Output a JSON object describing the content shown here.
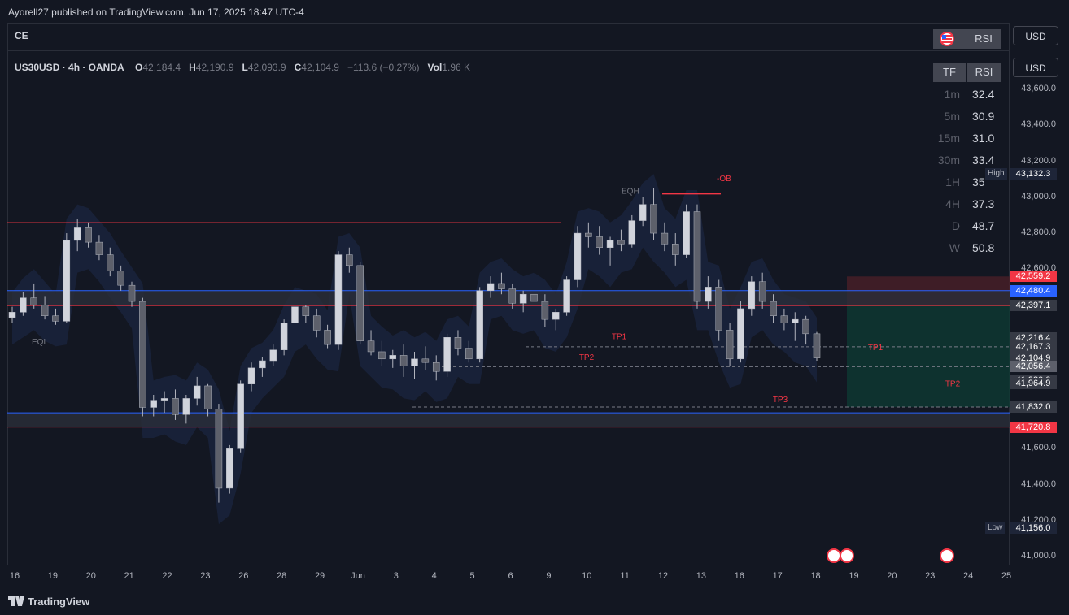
{
  "header": {
    "publisher_line": "Ayorell27 published on TradingView.com, Jun 17, 2025 18:47 UTC-4"
  },
  "mini_pane": {
    "label": "CE",
    "buttons": [
      "RSI"
    ]
  },
  "legend": {
    "symbol": "US30USD · 4h · OANDA",
    "o_label": "O",
    "o_value": "42,184.4",
    "h_label": "H",
    "h_value": "42,190.9",
    "l_label": "L",
    "l_value": "42,093.9",
    "c_label": "C",
    "c_value": "42,104.9",
    "change": "−113.6 (−0.27%)",
    "vol_label": "Vol",
    "vol_value": "1.96 K"
  },
  "rsi_table": {
    "header_tf": "TF",
    "header_rsi": "RSI",
    "rows": [
      {
        "tf": "1m",
        "rsi": "32.4"
      },
      {
        "tf": "5m",
        "rsi": "30.9"
      },
      {
        "tf": "15m",
        "rsi": "31.0"
      },
      {
        "tf": "30m",
        "rsi": "33.4"
      },
      {
        "tf": "1H",
        "rsi": "35"
      },
      {
        "tf": "4H",
        "rsi": "37.3"
      },
      {
        "tf": "D",
        "rsi": "48.7"
      },
      {
        "tf": "W",
        "rsi": "50.8"
      }
    ]
  },
  "currency": "USD",
  "branding": "TradingView",
  "colors": {
    "bg": "#131722",
    "candle": "#b2b5be",
    "red_line": "#f23645",
    "blue_line": "#2962ff",
    "cloud_blue": "#1e2a4a",
    "cloud_red": "#3d1f2a",
    "tp_box": "#0e3a33",
    "sl_box": "#4a1f28"
  },
  "chart_data": {
    "type": "candlestick",
    "symbol": "US30USD",
    "interval": "4h",
    "ylim": [
      40950,
      43800
    ],
    "y_ticks": [
      41000,
      41200,
      41400,
      41600,
      42600,
      42800,
      43000,
      43200,
      43400,
      43600
    ],
    "y_tick_labels": [
      "41,000.0",
      "41,200.0",
      "41,400.0",
      "41,600.0",
      "42,600.0",
      "42,800.0",
      "43,000.0",
      "43,200.0",
      "43,400.0",
      "43,600.0"
    ],
    "x_tick_labels": [
      "16",
      "19",
      "20",
      "21",
      "22",
      "23",
      "26",
      "28",
      "29",
      "Jun",
      "3",
      "4",
      "5",
      "6",
      "9",
      "10",
      "11",
      "12",
      "13",
      "16",
      "17",
      "18",
      "19",
      "20",
      "23",
      "24",
      "25"
    ],
    "price_labels": [
      {
        "value": 43132.3,
        "text": "43,132.3",
        "color": "#1e2538",
        "tag": "High"
      },
      {
        "value": 42559.2,
        "text": "42,559.2",
        "color": "#f23645"
      },
      {
        "value": 42480.4,
        "text": "42,480.4",
        "color": "#2962ff"
      },
      {
        "value": 42397.1,
        "text": "42,397.1",
        "color": "#363a45"
      },
      {
        "value": 42216.4,
        "text": "42,216.4",
        "color": "#363a45"
      },
      {
        "value": 42167.3,
        "text": "42,167.3",
        "color": "#363a45"
      },
      {
        "value": 42104.9,
        "text": "42,104.9",
        "color": "#363a45"
      },
      {
        "value": 42056.4,
        "text": "42,056.4",
        "color": "#5d606b"
      },
      {
        "value": 41980.0,
        "text": "41,980.0",
        "color": "#363a45"
      },
      {
        "value": 41964.9,
        "text": "41,964.9",
        "color": "#363a45"
      },
      {
        "value": 41832.0,
        "text": "41,832.0",
        "color": "#363a45"
      },
      {
        "value": 41720.8,
        "text": "41,720.8",
        "color": "#f23645"
      },
      {
        "value": 41156.0,
        "text": "41,156.0",
        "color": "#1e2538",
        "tag": "Low"
      }
    ],
    "annotations": [
      "EQL",
      "EQH",
      "-OB",
      "TP1",
      "TP2",
      "TP3"
    ],
    "levels": {
      "red_upper": 42397.1,
      "blue_upper": 42480.4,
      "blue_lower": 41800,
      "red_lower": 41720.8,
      "tp1": 42167.3,
      "tp2": 42056.4,
      "tp3": 41832.0,
      "ob": 43020
    },
    "candles": [
      [
        42330,
        42390,
        42300,
        42360
      ],
      [
        42360,
        42470,
        42340,
        42440
      ],
      [
        42440,
        42520,
        42380,
        42400
      ],
      [
        42400,
        42450,
        42320,
        42340
      ],
      [
        42340,
        42380,
        42290,
        42310
      ],
      [
        42310,
        42800,
        42300,
        42760
      ],
      [
        42760,
        42880,
        42700,
        42830
      ],
      [
        42830,
        42860,
        42720,
        42750
      ],
      [
        42750,
        42790,
        42650,
        42680
      ],
      [
        42680,
        42720,
        42560,
        42590
      ],
      [
        42590,
        42620,
        42480,
        42510
      ],
      [
        42510,
        42530,
        42390,
        42420
      ],
      [
        42420,
        42440,
        41780,
        41830
      ],
      [
        41830,
        41900,
        41780,
        41870
      ],
      [
        41870,
        41920,
        41800,
        41880
      ],
      [
        41880,
        41930,
        41760,
        41790
      ],
      [
        41790,
        41900,
        41740,
        41880
      ],
      [
        41880,
        42000,
        41840,
        41950
      ],
      [
        41950,
        41960,
        41780,
        41820
      ],
      [
        41820,
        41850,
        41300,
        41380
      ],
      [
        41380,
        41620,
        41350,
        41600
      ],
      [
        41600,
        41980,
        41580,
        41960
      ],
      [
        41960,
        42080,
        41920,
        42050
      ],
      [
        42050,
        42110,
        42000,
        42090
      ],
      [
        42090,
        42180,
        42060,
        42150
      ],
      [
        42150,
        42320,
        42120,
        42300
      ],
      [
        42300,
        42420,
        42260,
        42390
      ],
      [
        42390,
        42400,
        42300,
        42340
      ],
      [
        42340,
        42380,
        42220,
        42260
      ],
      [
        42260,
        42290,
        42160,
        42180
      ],
      [
        42180,
        42700,
        42150,
        42680
      ],
      [
        42680,
        42720,
        42580,
        42620
      ],
      [
        42620,
        42640,
        42180,
        42200
      ],
      [
        42200,
        42260,
        42120,
        42140
      ],
      [
        42140,
        42200,
        42060,
        42100
      ],
      [
        42100,
        42150,
        42050,
        42120
      ],
      [
        42120,
        42180,
        42000,
        42060
      ],
      [
        42060,
        42140,
        41990,
        42100
      ],
      [
        42100,
        42170,
        42040,
        42080
      ],
      [
        42080,
        42120,
        41980,
        42030
      ],
      [
        42030,
        42240,
        42000,
        42220
      ],
      [
        42220,
        42260,
        42120,
        42160
      ],
      [
        42160,
        42200,
        42080,
        42100
      ],
      [
        42100,
        42500,
        42080,
        42480
      ],
      [
        42480,
        42560,
        42440,
        42520
      ],
      [
        42520,
        42580,
        42460,
        42490
      ],
      [
        42490,
        42520,
        42380,
        42410
      ],
      [
        42410,
        42480,
        42360,
        42460
      ],
      [
        42460,
        42500,
        42380,
        42420
      ],
      [
        42420,
        42460,
        42280,
        42320
      ],
      [
        42320,
        42380,
        42260,
        42360
      ],
      [
        42360,
        42560,
        42340,
        42540
      ],
      [
        42540,
        42840,
        42500,
        42800
      ],
      [
        42800,
        42860,
        42720,
        42780
      ],
      [
        42780,
        42840,
        42680,
        42720
      ],
      [
        42720,
        42780,
        42620,
        42760
      ],
      [
        42760,
        42820,
        42700,
        42740
      ],
      [
        42740,
        42900,
        42720,
        42870
      ],
      [
        42870,
        43000,
        42840,
        42960
      ],
      [
        42960,
        43050,
        42760,
        42800
      ],
      [
        42800,
        42860,
        42700,
        42740
      ],
      [
        42740,
        42800,
        42620,
        42680
      ],
      [
        42680,
        42960,
        42660,
        42920
      ],
      [
        42920,
        42960,
        42380,
        42420
      ],
      [
        42420,
        42560,
        42380,
        42500
      ],
      [
        42500,
        42540,
        42200,
        42260
      ],
      [
        42260,
        42300,
        42060,
        42100
      ],
      [
        42100,
        42420,
        42080,
        42380
      ],
      [
        42380,
        42560,
        42340,
        42530
      ],
      [
        42530,
        42580,
        42380,
        42420
      ],
      [
        42420,
        42460,
        42300,
        42340
      ],
      [
        42340,
        42380,
        42260,
        42300
      ],
      [
        42300,
        42360,
        42200,
        42320
      ],
      [
        42320,
        42340,
        42180,
        42240
      ],
      [
        42240,
        42250,
        42090,
        42105
      ]
    ]
  }
}
